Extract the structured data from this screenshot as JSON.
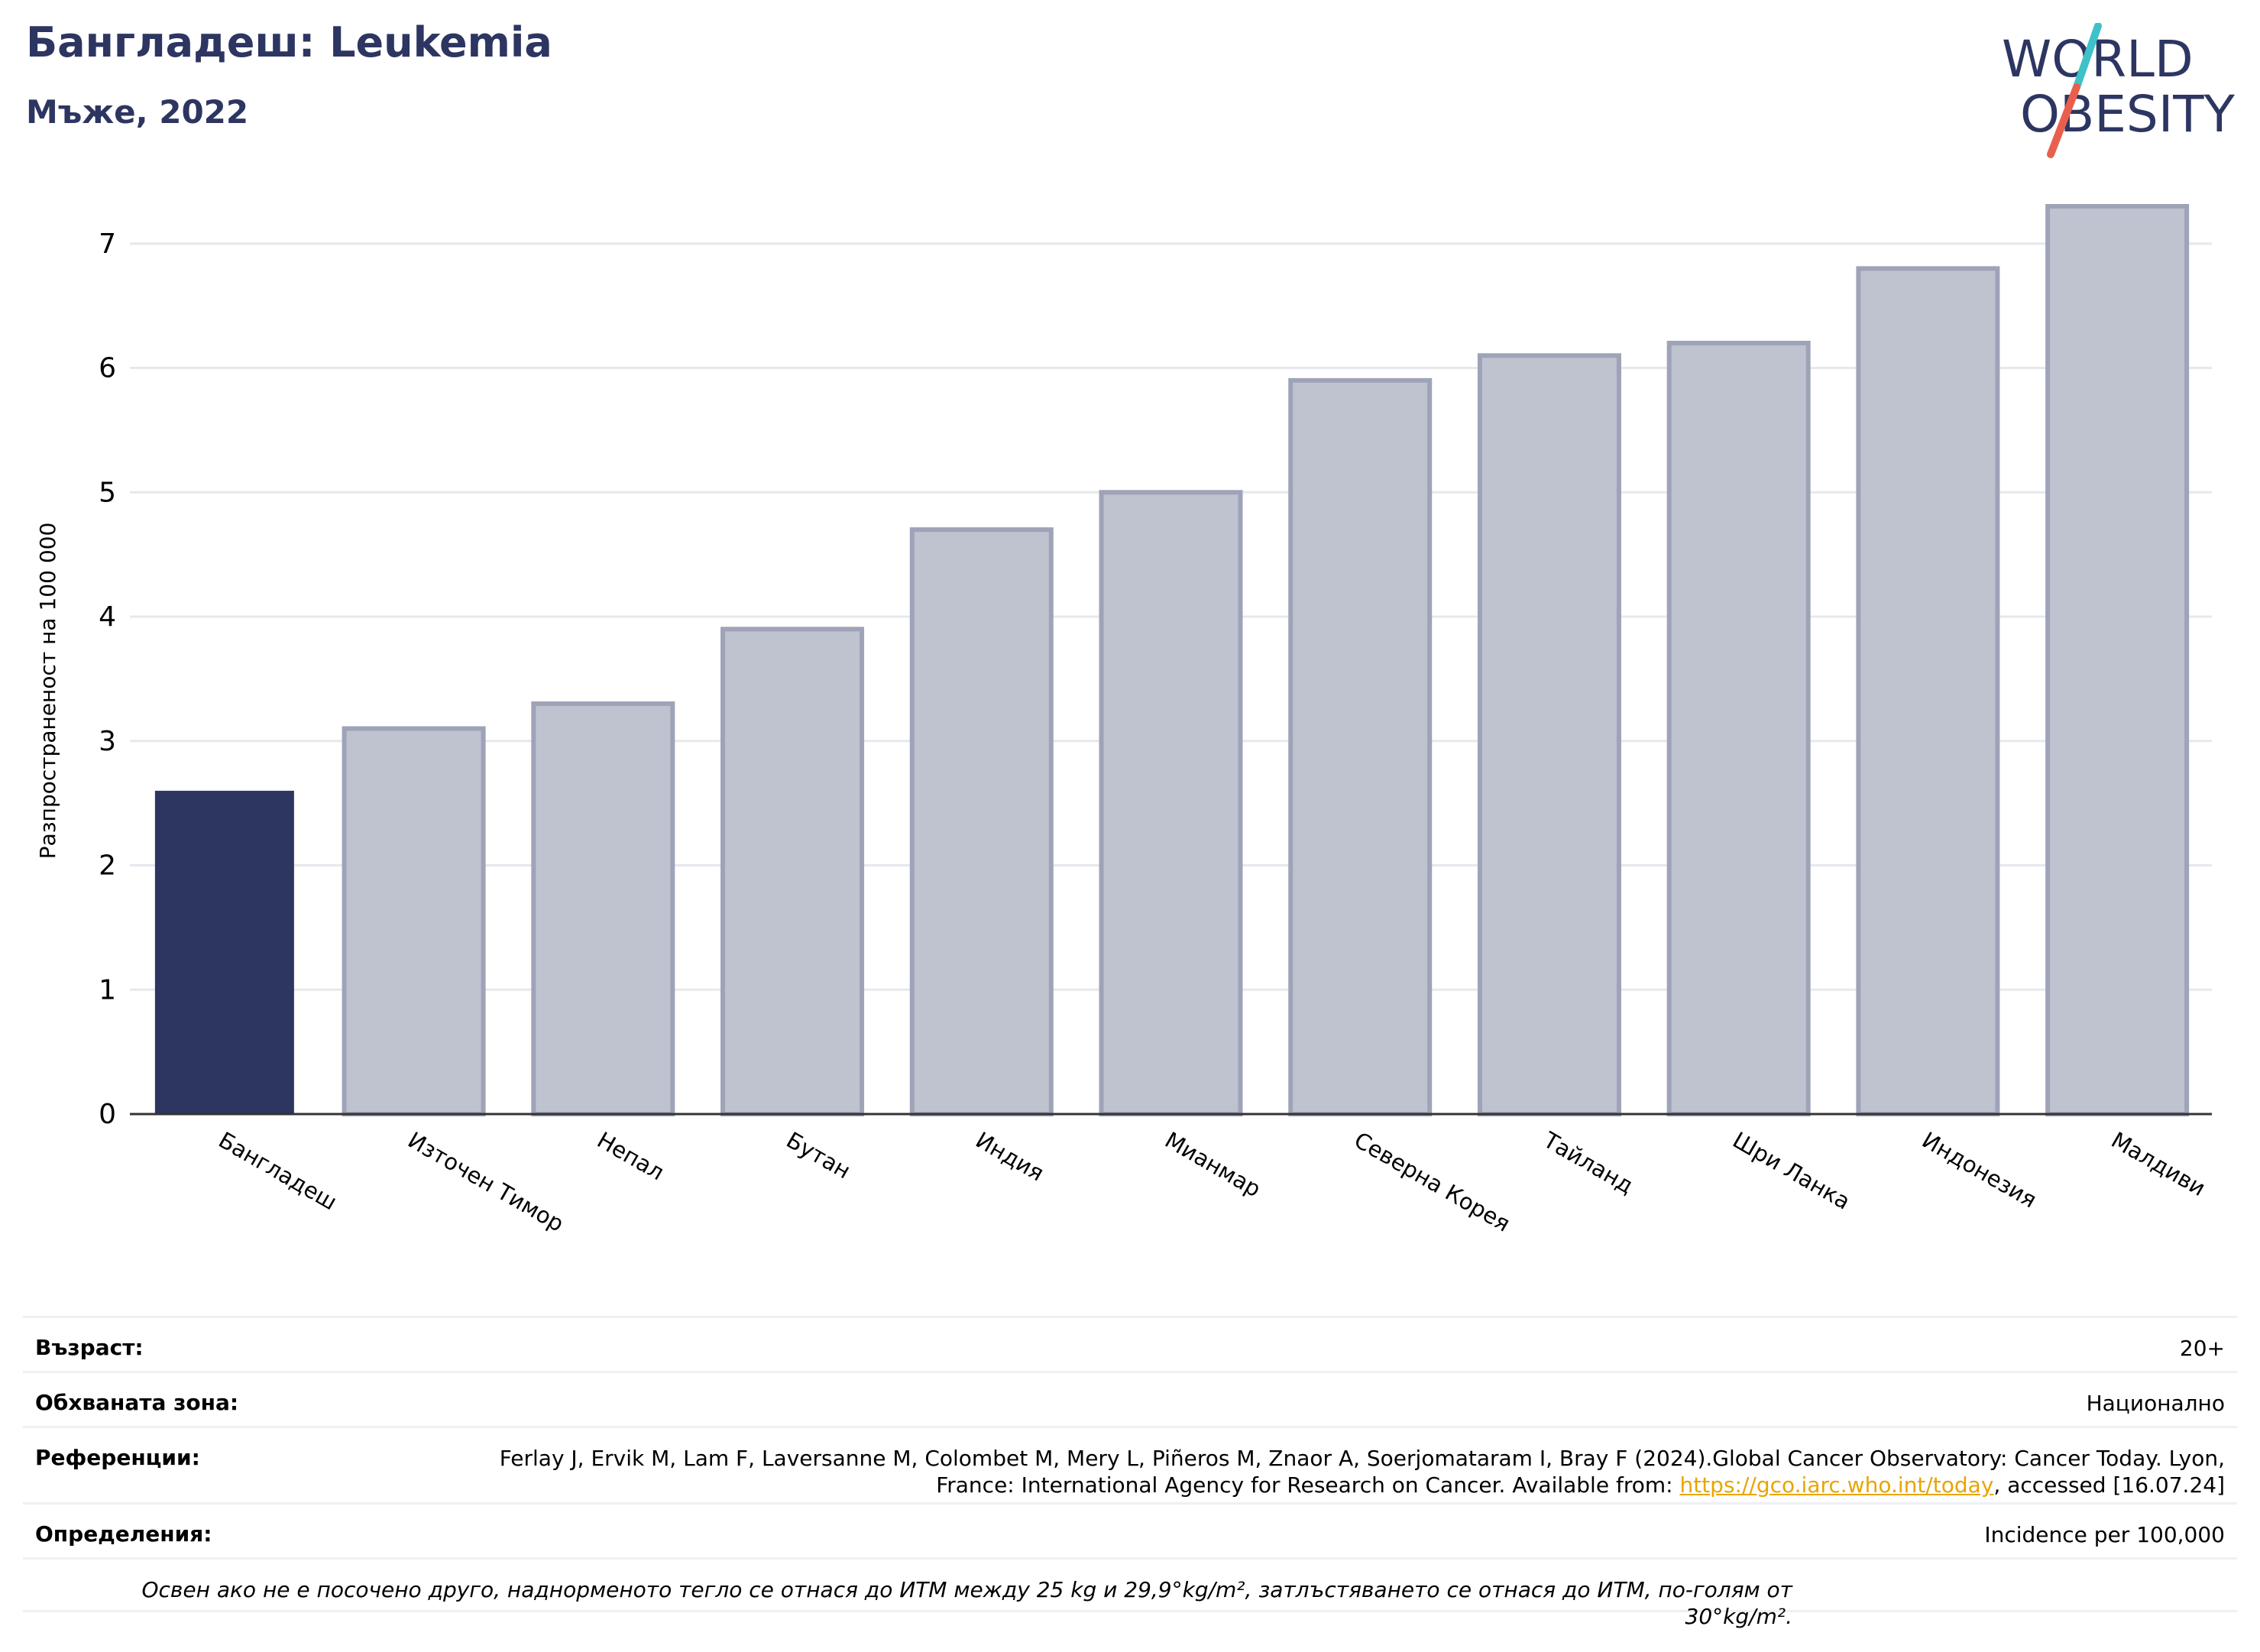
{
  "header": {
    "title": "Бангладеш: Leukemia",
    "subtitle": "Мъже, 2022",
    "logo_line1": "WORLD",
    "logo_line2": "OBESITY"
  },
  "colors": {
    "highlight": "#2d3561",
    "other_bars": "#bfc2cf",
    "other_bars_border": "#9ea3b8",
    "logo_teal": "#3ec1c9",
    "logo_coral": "#e8604c"
  },
  "chart_data": {
    "type": "bar",
    "ylabel": "Разпространеност  на 100 000",
    "ylim": [
      0,
      7.3
    ],
    "yticks": [
      0,
      1,
      2,
      3,
      4,
      5,
      6,
      7
    ],
    "categories": [
      "Бангладеш",
      "Източен Тимор",
      "Непал",
      "Бутан",
      "Индия",
      "Мианмар",
      "Северна Корея",
      "Тайланд",
      "Шри Ланка",
      "Индонезия",
      "Малдиви"
    ],
    "values": [
      2.6,
      3.1,
      3.3,
      3.9,
      4.7,
      5.0,
      5.9,
      6.1,
      6.2,
      6.8,
      7.3
    ],
    "highlight_category": "Бангладеш",
    "grid": true
  },
  "info": {
    "age_label": "Възраст:",
    "age_value": "20+",
    "area_label": "Обхваната зона:",
    "area_value": "Национално",
    "refs_label": "Референции:",
    "refs_text_1": "Ferlay J, Ervik M, Lam F, Laversanne M, Colombet M, Mery L, Piñeros M, Znaor A, Soerjomataram I, Bray F (2024).Global Cancer Observatory: Cancer Today. Lyon, France: International Agency for Research on Cancer. Available from: ",
    "refs_link": "https://gco.iarc.who.int/today",
    "refs_text_2": ", accessed [16.07.24]",
    "defs_label": "Определения:",
    "defs_value": "Incidence per 100,000",
    "note": "Освен ако не е посочено друго, наднорменото тегло се отнася до ИТМ между 25 kg и 29,9°kg/m², затлъстяването се отнася до ИТМ, по-голям от 30°kg/m²."
  }
}
